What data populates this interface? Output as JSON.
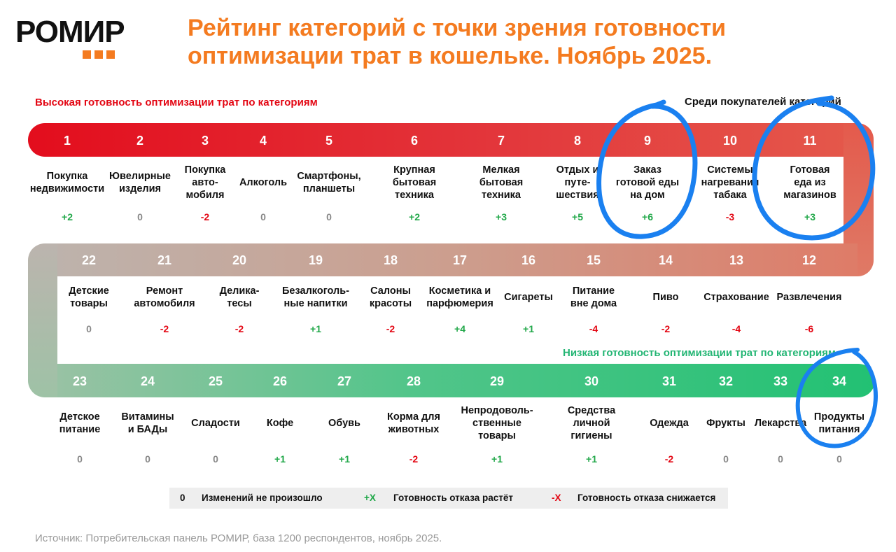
{
  "logo": {
    "text": "РОМИР"
  },
  "title": {
    "line1": "Рейтинг категорий с точки зрения готовности",
    "line2": "оптимизации трат в кошельке. Ноябрь 2025."
  },
  "labels": {
    "high": "Высокая готовность оптимизации трат по категориям",
    "buyers": "Среди покупателей категорий",
    "low": "Низкая готовность оптимизации трат по категориям"
  },
  "colors": {
    "accent": "#f47b20",
    "positive": "#22a84a",
    "negative": "#e30613",
    "neutral": "#888888",
    "band_red": "#e30613",
    "band_green": "#22c173",
    "annotation_blue": "#1a80f0"
  },
  "rows": [
    {
      "items": [
        {
          "rank": "1",
          "lines": [
            "Покупка",
            "недвижимости"
          ],
          "change": "+2"
        },
        {
          "rank": "2",
          "lines": [
            "Ювелирные",
            "изделия"
          ],
          "change": "0"
        },
        {
          "rank": "3",
          "lines": [
            "Покупка",
            "авто-",
            "мобиля"
          ],
          "change": "-2"
        },
        {
          "rank": "4",
          "lines": [
            "Алкоголь"
          ],
          "change": "0"
        },
        {
          "rank": "5",
          "lines": [
            "Смартфоны,",
            "планшеты"
          ],
          "change": "0"
        },
        {
          "rank": "6",
          "lines": [
            "Крупная",
            "бытовая",
            "техника"
          ],
          "change": "+2"
        },
        {
          "rank": "7",
          "lines": [
            "Мелкая",
            "бытовая",
            "техника"
          ],
          "change": "+3"
        },
        {
          "rank": "8",
          "lines": [
            "Отдых и",
            "путе-",
            "шествия"
          ],
          "change": "+5"
        },
        {
          "rank": "9",
          "lines": [
            "Заказ",
            "готовой еды",
            "на дом"
          ],
          "change": "+6"
        },
        {
          "rank": "10",
          "lines": [
            "Системы",
            "нагревания",
            "табака"
          ],
          "change": "-3"
        },
        {
          "rank": "11",
          "lines": [
            "Готовая",
            "еда из",
            "магазинов"
          ],
          "change": "+3"
        }
      ]
    },
    {
      "items": [
        {
          "rank": "22",
          "lines": [
            "Детские",
            "товары"
          ],
          "change": "0"
        },
        {
          "rank": "21",
          "lines": [
            "Ремонт",
            "автомобиля"
          ],
          "change": "-2"
        },
        {
          "rank": "20",
          "lines": [
            "Делика-",
            "тесы"
          ],
          "change": "-2"
        },
        {
          "rank": "19",
          "lines": [
            "Безалкоголь-",
            "ные напитки"
          ],
          "change": "+1"
        },
        {
          "rank": "18",
          "lines": [
            "Салоны",
            "красоты"
          ],
          "change": "-2"
        },
        {
          "rank": "17",
          "lines": [
            "Косметика и",
            "парфюмерия"
          ],
          "change": "+4"
        },
        {
          "rank": "16",
          "lines": [
            "Сигареты"
          ],
          "change": "+1"
        },
        {
          "rank": "15",
          "lines": [
            "Питание",
            "вне дома"
          ],
          "change": "-4"
        },
        {
          "rank": "14",
          "lines": [
            "Пиво"
          ],
          "change": "-2"
        },
        {
          "rank": "13",
          "lines": [
            "Страхование"
          ],
          "change": "-4"
        },
        {
          "rank": "12",
          "lines": [
            "Развлечения"
          ],
          "change": "-6"
        }
      ]
    },
    {
      "items": [
        {
          "rank": "23",
          "lines": [
            "Детское",
            "питание"
          ],
          "change": "0"
        },
        {
          "rank": "24",
          "lines": [
            "Витамины",
            "и БАДы"
          ],
          "change": "0"
        },
        {
          "rank": "25",
          "lines": [
            "Сладости"
          ],
          "change": "0"
        },
        {
          "rank": "26",
          "lines": [
            "Кофе"
          ],
          "change": "+1"
        },
        {
          "rank": "27",
          "lines": [
            "Обувь"
          ],
          "change": "+1"
        },
        {
          "rank": "28",
          "lines": [
            "Корма для",
            "животных"
          ],
          "change": "-2"
        },
        {
          "rank": "29",
          "lines": [
            "Непродоволь-",
            "ственные",
            "товары"
          ],
          "change": "+1"
        },
        {
          "rank": "30",
          "lines": [
            "Средства",
            "личной",
            "гигиены"
          ],
          "change": "+1"
        },
        {
          "rank": "31",
          "lines": [
            "Одежда"
          ],
          "change": "-2"
        },
        {
          "rank": "32",
          "lines": [
            "Фрукты"
          ],
          "change": "0"
        },
        {
          "rank": "33",
          "lines": [
            "Лекарства"
          ],
          "change": "0"
        },
        {
          "rank": "34",
          "lines": [
            "Продукты",
            "питания"
          ],
          "change": "0"
        }
      ]
    }
  ],
  "legend": {
    "zero_symbol": "0",
    "zero_text": "Изменений не произошло",
    "plus_symbol": "+X",
    "plus_text": "Готовность отказа растёт",
    "minus_symbol": "-X",
    "minus_text": "Готовность отказа снижается"
  },
  "source": "Источник: Потребительская панель РОМИР, база 1200 респондентов, ноябрь 2025."
}
